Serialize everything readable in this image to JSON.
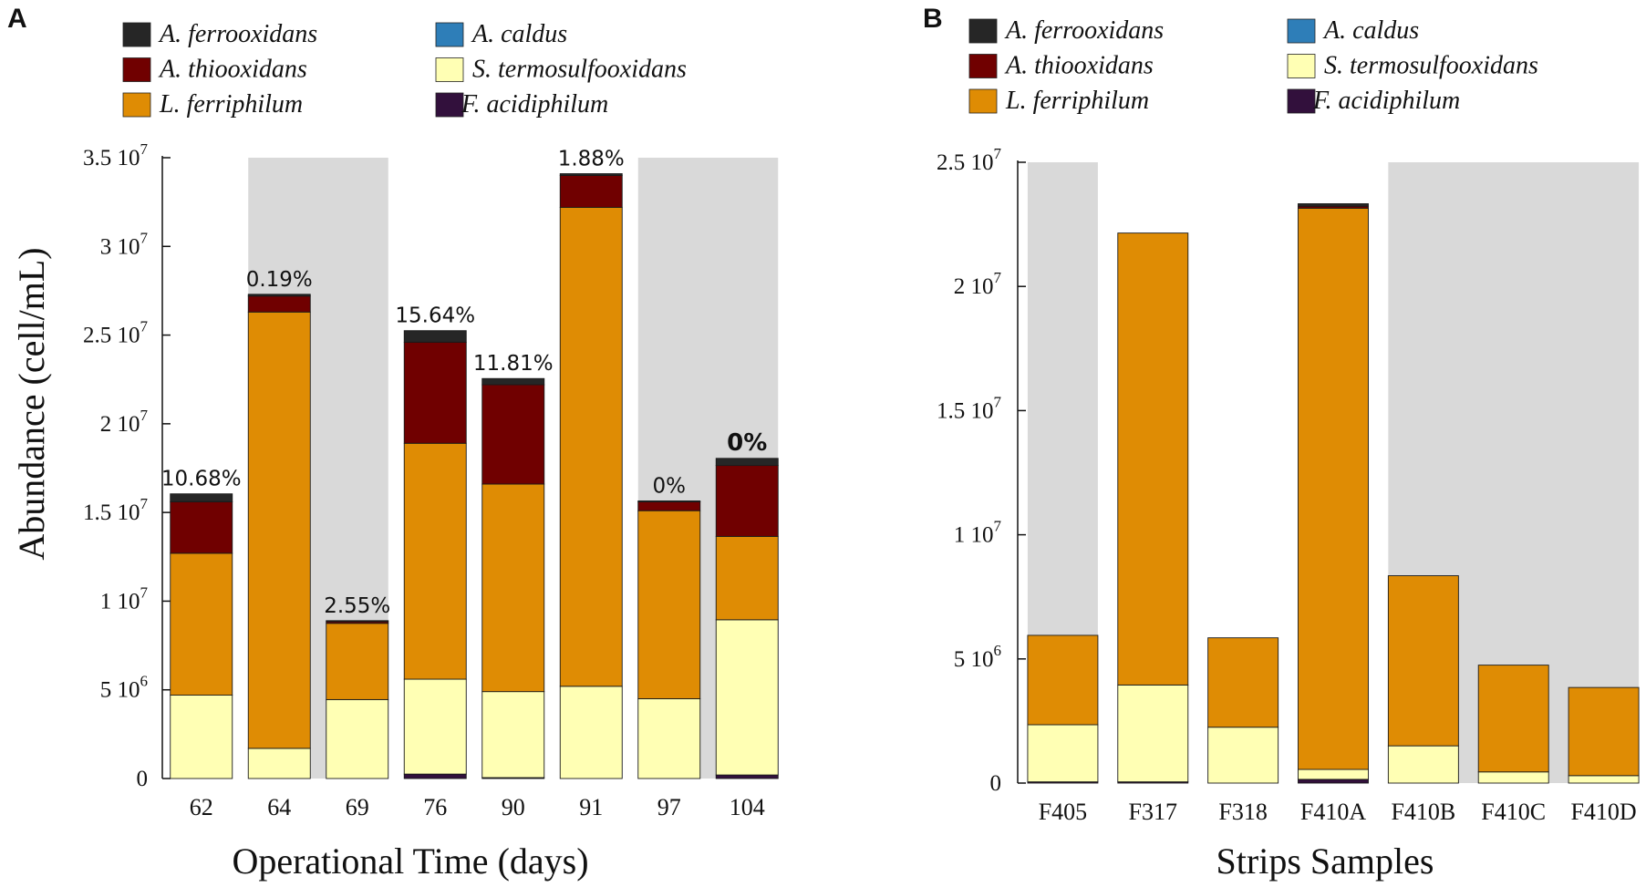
{
  "colors": {
    "A. ferrooxidans": "#262626",
    "A. caldus": "#2e7eb8",
    "A. thiooxidans": "#700000",
    "S. termosulfooxidans": "#ffffb4",
    "L. ferriphilum": "#df8c04",
    "F. acidiphilum": "#32103c",
    "shade": "#d9d9d9"
  },
  "chart_data": [
    {
      "panel": "A",
      "type": "bar",
      "stacked": true,
      "legend": [
        {
          "name": "A. ferrooxidans"
        },
        {
          "name": "A. caldus"
        },
        {
          "name": "A. thiooxidans"
        },
        {
          "name": "S. termosulfooxidans"
        },
        {
          "name": "L. ferriphilum"
        },
        {
          "name": "F. acidiphilum"
        }
      ],
      "categories": [
        "62",
        "64",
        "69",
        "76",
        "90",
        "91",
        "97",
        "104"
      ],
      "series": [
        {
          "name": "F. acidiphilum",
          "values": [
            0,
            0,
            0,
            250000,
            50000,
            0,
            0,
            200000
          ]
        },
        {
          "name": "S. termosulfooxidans",
          "values": [
            4700000,
            1700000,
            4450000,
            5350000,
            4850000,
            5200000,
            4500000,
            8750000
          ]
        },
        {
          "name": "L. ferriphilum",
          "values": [
            8000000,
            24600000,
            4300000,
            13300000,
            11700000,
            27000000,
            10600000,
            4700000
          ]
        },
        {
          "name": "A. caldus",
          "values": [
            0,
            0,
            0,
            0,
            0,
            0,
            0,
            0
          ]
        },
        {
          "name": "A. thiooxidans",
          "values": [
            2900000,
            900000,
            100000,
            5700000,
            5600000,
            1800000,
            500000,
            4000000
          ]
        },
        {
          "name": "A. ferrooxidans",
          "values": [
            450000,
            100000,
            50000,
            650000,
            350000,
            100000,
            50000,
            400000
          ]
        }
      ],
      "annotations": [
        "10.68%",
        "0.19%",
        "2.55%",
        "15.64%",
        "11.81%",
        "1.88%",
        "0%",
        "0%"
      ],
      "bold_annotations": [
        false,
        false,
        false,
        false,
        false,
        false,
        false,
        true
      ],
      "shaded_categories": [
        1,
        2,
        6,
        7
      ],
      "y_ticks": [
        {
          "value": 0,
          "label": "0"
        },
        {
          "value": 5000000,
          "label": "5 10",
          "exp": "6"
        },
        {
          "value": 10000000,
          "label": "1 10",
          "exp": "7"
        },
        {
          "value": 15000000,
          "label": "1.5 10",
          "exp": "7"
        },
        {
          "value": 20000000,
          "label": "2 10",
          "exp": "7"
        },
        {
          "value": 25000000,
          "label": "2.5 10",
          "exp": "7"
        },
        {
          "value": 30000000,
          "label": "3 10",
          "exp": "7"
        },
        {
          "value": 35000000,
          "label": "3.5 10",
          "exp": "7"
        }
      ],
      "ylim": [
        0,
        35000000
      ],
      "xlabel": "Operational Time (days)",
      "ylabel": "Abundance (cell/mL)"
    },
    {
      "panel": "B",
      "type": "bar",
      "stacked": true,
      "legend": [
        {
          "name": "A. ferrooxidans"
        },
        {
          "name": "A. caldus"
        },
        {
          "name": "A. thiooxidans"
        },
        {
          "name": "S. termosulfooxidans"
        },
        {
          "name": "L. ferriphilum"
        },
        {
          "name": "F. acidiphilum"
        }
      ],
      "categories": [
        "F405",
        "F317",
        "F318",
        "F410A",
        "F410B",
        "F410C",
        "F410D"
      ],
      "series": [
        {
          "name": "F. acidiphilum",
          "values": [
            50000,
            50000,
            0,
            150000,
            0,
            0,
            0
          ]
        },
        {
          "name": "S. termosulfooxidans",
          "values": [
            2300000,
            3900000,
            2250000,
            400000,
            1500000,
            450000,
            300000
          ]
        },
        {
          "name": "L. ferriphilum",
          "values": [
            3600000,
            18200000,
            3600000,
            22600000,
            6850000,
            4300000,
            3550000
          ]
        },
        {
          "name": "A. caldus",
          "values": [
            0,
            0,
            0,
            0,
            0,
            0,
            0
          ]
        },
        {
          "name": "A. thiooxidans",
          "values": [
            0,
            0,
            0,
            80000,
            0,
            0,
            0
          ]
        },
        {
          "name": "A. ferrooxidans",
          "values": [
            0,
            0,
            0,
            100000,
            0,
            0,
            0
          ]
        }
      ],
      "annotations": [],
      "bold_annotations": [],
      "shaded_categories": [
        0,
        4,
        5,
        6
      ],
      "y_ticks": [
        {
          "value": 0,
          "label": "0"
        },
        {
          "value": 5000000,
          "label": "5 10",
          "exp": "6"
        },
        {
          "value": 10000000,
          "label": "1 10",
          "exp": "7"
        },
        {
          "value": 15000000,
          "label": "1.5 10",
          "exp": "7"
        },
        {
          "value": 20000000,
          "label": "2 10",
          "exp": "7"
        },
        {
          "value": 25000000,
          "label": "2.5 10",
          "exp": "7"
        }
      ],
      "ylim": [
        0,
        25000000
      ],
      "xlabel": "Strips Samples",
      "ylabel": ""
    }
  ]
}
